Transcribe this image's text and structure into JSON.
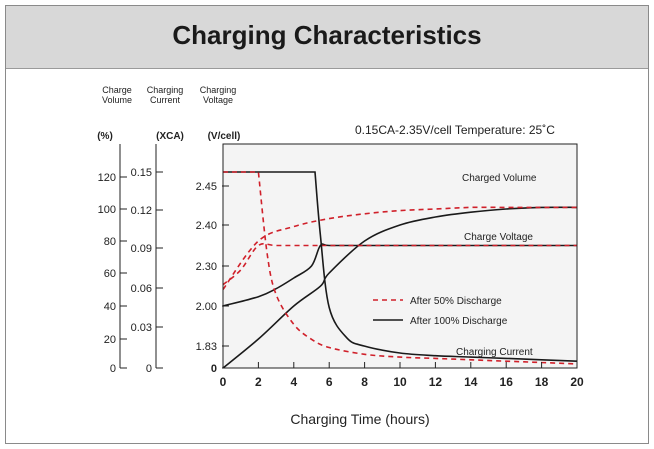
{
  "title": "Charging Characteristics",
  "chart_data": {
    "type": "line",
    "subtitle": "0.15CA-2.35V/cell  Temperature: 25˚C",
    "xlabel": "Charging Time (hours)",
    "xlim": [
      0,
      20
    ],
    "xticks": [
      "0",
      "2",
      "4",
      "6",
      "8",
      "10",
      "12",
      "14",
      "16",
      "18",
      "20"
    ],
    "axes": [
      {
        "header": [
          "Charge",
          "Volume"
        ],
        "unit": "(%)",
        "ticks": [
          "0",
          "20",
          "40",
          "60",
          "80",
          "100",
          "120"
        ]
      },
      {
        "header": [
          "Charging",
          "Current"
        ],
        "unit": "(XCA)",
        "ticks": [
          "0",
          "0.03",
          "0.06",
          "0.09",
          "0.12",
          "0.15"
        ]
      },
      {
        "header": [
          "Charging",
          "Voltage"
        ],
        "unit": "(V/cell)",
        "ticks": [
          "0",
          "1.83",
          "2.00",
          "2.30",
          "2.40",
          "2.45"
        ]
      }
    ],
    "legend": {
      "position": "center-right",
      "entries": [
        {
          "label": "After 50% Discharge",
          "color": "#d0202a",
          "style": "dashed"
        },
        {
          "label": "After 100%  Discharge",
          "color": "#1a1a1a",
          "style": "solid"
        }
      ]
    },
    "curve_labels": {
      "charged_volume": "Charged Volume",
      "charge_voltage": "Charge Voltage",
      "charging_current": "Charging Current"
    },
    "series": [
      {
        "curve": "charged_volume",
        "condition": "After 100%  Discharge",
        "axis": "(%)",
        "x": [
          0,
          2,
          4,
          5.5,
          6,
          8,
          10,
          12,
          14,
          16,
          18,
          20
        ],
        "y": [
          0,
          20,
          40,
          52,
          60,
          80,
          90,
          95,
          98,
          100,
          101,
          101
        ]
      },
      {
        "curve": "charged_volume",
        "condition": "After 50% Discharge",
        "axis": "(%)",
        "x": [
          0,
          2,
          4,
          6,
          8,
          10,
          12,
          14,
          16,
          18,
          20
        ],
        "y": [
          50,
          80,
          89,
          94,
          97,
          99,
          100,
          101,
          101,
          101,
          101
        ]
      },
      {
        "curve": "charge_voltage",
        "condition": "After 100%  Discharge",
        "axis": "(V/cell)",
        "x": [
          0,
          2,
          3,
          4,
          5,
          5.5,
          6,
          8,
          10,
          12,
          14,
          16,
          18,
          20
        ],
        "y": [
          2.0,
          2.07,
          2.13,
          2.21,
          2.3,
          2.35,
          2.35,
          2.35,
          2.35,
          2.35,
          2.35,
          2.35,
          2.35,
          2.35
        ]
      },
      {
        "curve": "charge_voltage",
        "condition": "After 50% Discharge",
        "axis": "(V/cell)",
        "x": [
          0,
          1,
          2,
          3,
          5,
          6,
          8,
          10,
          12,
          14,
          16,
          18,
          20
        ],
        "y": [
          2.16,
          2.27,
          2.35,
          2.35,
          2.35,
          2.35,
          2.35,
          2.35,
          2.35,
          2.35,
          2.35,
          2.35,
          2.35
        ]
      },
      {
        "curve": "charging_current",
        "condition": "After 100%  Discharge",
        "axis": "(XCA)",
        "x": [
          0,
          5.2,
          5.5,
          6,
          7,
          8,
          10,
          12,
          14,
          16,
          18,
          20
        ],
        "y": [
          0.15,
          0.15,
          0.1,
          0.045,
          0.022,
          0.016,
          0.011,
          0.009,
          0.008,
          0.007,
          0.006,
          0.005
        ]
      },
      {
        "curve": "charging_current",
        "condition": "After 50% Discharge",
        "axis": "(XCA)",
        "x": [
          0,
          2,
          2.5,
          3,
          4,
          5,
          6,
          8,
          10,
          12,
          14,
          16,
          18,
          20
        ],
        "y": [
          0.15,
          0.15,
          0.085,
          0.055,
          0.032,
          0.021,
          0.015,
          0.01,
          0.008,
          0.007,
          0.006,
          0.005,
          0.004,
          0.003
        ]
      }
    ]
  }
}
